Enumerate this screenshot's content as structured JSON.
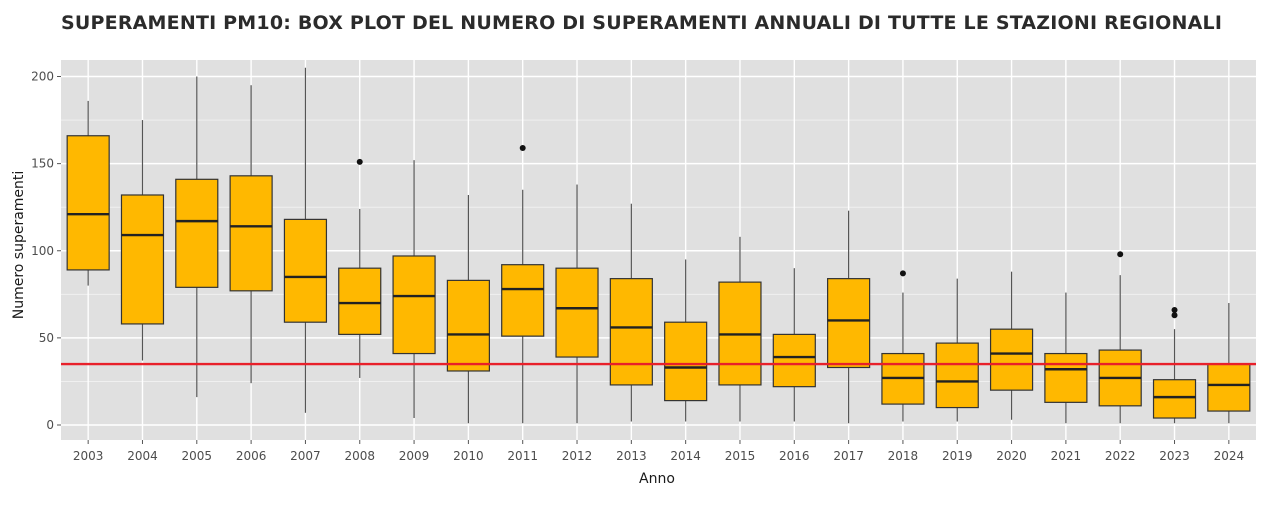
{
  "chart_data": {
    "type": "box",
    "title": "SUPERAMENTI PM10: BOX PLOT DEL NUMERO DI SUPERAMENTI ANNUALI DI TUTTE LE STAZIONI REGIONALI",
    "xlabel": "Anno",
    "ylabel": "Numero superamenti",
    "ylim": [
      -8,
      208
    ],
    "yticks": [
      0,
      50,
      100,
      150,
      200
    ],
    "grid": true,
    "box_color": "#ffb800",
    "box_edge_color": "#333333",
    "reference_line": {
      "value": 35,
      "color": "#e8202a"
    },
    "categories": [
      "2003",
      "2004",
      "2005",
      "2006",
      "2007",
      "2008",
      "2009",
      "2010",
      "2011",
      "2012",
      "2013",
      "2014",
      "2015",
      "2016",
      "2017",
      "2018",
      "2019",
      "2020",
      "2021",
      "2022",
      "2023",
      "2024"
    ],
    "boxes": [
      {
        "year": "2003",
        "min": 80,
        "q1": 89,
        "median": 121,
        "q3": 166,
        "max": 186,
        "outliers": []
      },
      {
        "year": "2004",
        "min": 37,
        "q1": 58,
        "median": 109,
        "q3": 132,
        "max": 175,
        "outliers": []
      },
      {
        "year": "2005",
        "min": 16,
        "q1": 79,
        "median": 117,
        "q3": 141,
        "max": 200,
        "outliers": []
      },
      {
        "year": "2006",
        "min": 24,
        "q1": 77,
        "median": 114,
        "q3": 143,
        "max": 195,
        "outliers": []
      },
      {
        "year": "2007",
        "min": 7,
        "q1": 59,
        "median": 85,
        "q3": 118,
        "max": 205,
        "outliers": []
      },
      {
        "year": "2008",
        "min": 27,
        "q1": 52,
        "median": 70,
        "q3": 90,
        "max": 124,
        "outliers": [
          151
        ]
      },
      {
        "year": "2009",
        "min": 4,
        "q1": 41,
        "median": 74,
        "q3": 97,
        "max": 152,
        "outliers": []
      },
      {
        "year": "2010",
        "min": 1,
        "q1": 31,
        "median": 52,
        "q3": 83,
        "max": 132,
        "outliers": []
      },
      {
        "year": "2011",
        "min": 1,
        "q1": 51,
        "median": 78,
        "q3": 92,
        "max": 135,
        "outliers": [
          159
        ]
      },
      {
        "year": "2012",
        "min": 1,
        "q1": 39,
        "median": 67,
        "q3": 90,
        "max": 138,
        "outliers": []
      },
      {
        "year": "2013",
        "min": 2,
        "q1": 23,
        "median": 56,
        "q3": 84,
        "max": 127,
        "outliers": []
      },
      {
        "year": "2014",
        "min": 2,
        "q1": 14,
        "median": 33,
        "q3": 59,
        "max": 95,
        "outliers": []
      },
      {
        "year": "2015",
        "min": 2,
        "q1": 23,
        "median": 52,
        "q3": 82,
        "max": 108,
        "outliers": []
      },
      {
        "year": "2016",
        "min": 2,
        "q1": 22,
        "median": 39,
        "q3": 52,
        "max": 90,
        "outliers": []
      },
      {
        "year": "2017",
        "min": 1,
        "q1": 33,
        "median": 60,
        "q3": 84,
        "max": 123,
        "outliers": []
      },
      {
        "year": "2018",
        "min": 2,
        "q1": 12,
        "median": 27,
        "q3": 41,
        "max": 76,
        "outliers": [
          87
        ]
      },
      {
        "year": "2019",
        "min": 2,
        "q1": 10,
        "median": 25,
        "q3": 47,
        "max": 84,
        "outliers": []
      },
      {
        "year": "2020",
        "min": 3,
        "q1": 20,
        "median": 41,
        "q3": 55,
        "max": 88,
        "outliers": []
      },
      {
        "year": "2021",
        "min": 1,
        "q1": 13,
        "median": 32,
        "q3": 41,
        "max": 76,
        "outliers": []
      },
      {
        "year": "2022",
        "min": 1,
        "q1": 11,
        "median": 27,
        "q3": 43,
        "max": 86,
        "outliers": [
          98
        ]
      },
      {
        "year": "2023",
        "min": 1,
        "q1": 4,
        "median": 16,
        "q3": 26,
        "max": 55,
        "outliers": [
          63,
          66
        ]
      },
      {
        "year": "2024",
        "min": 1,
        "q1": 8,
        "median": 23,
        "q3": 35,
        "max": 70,
        "outliers": []
      }
    ]
  }
}
